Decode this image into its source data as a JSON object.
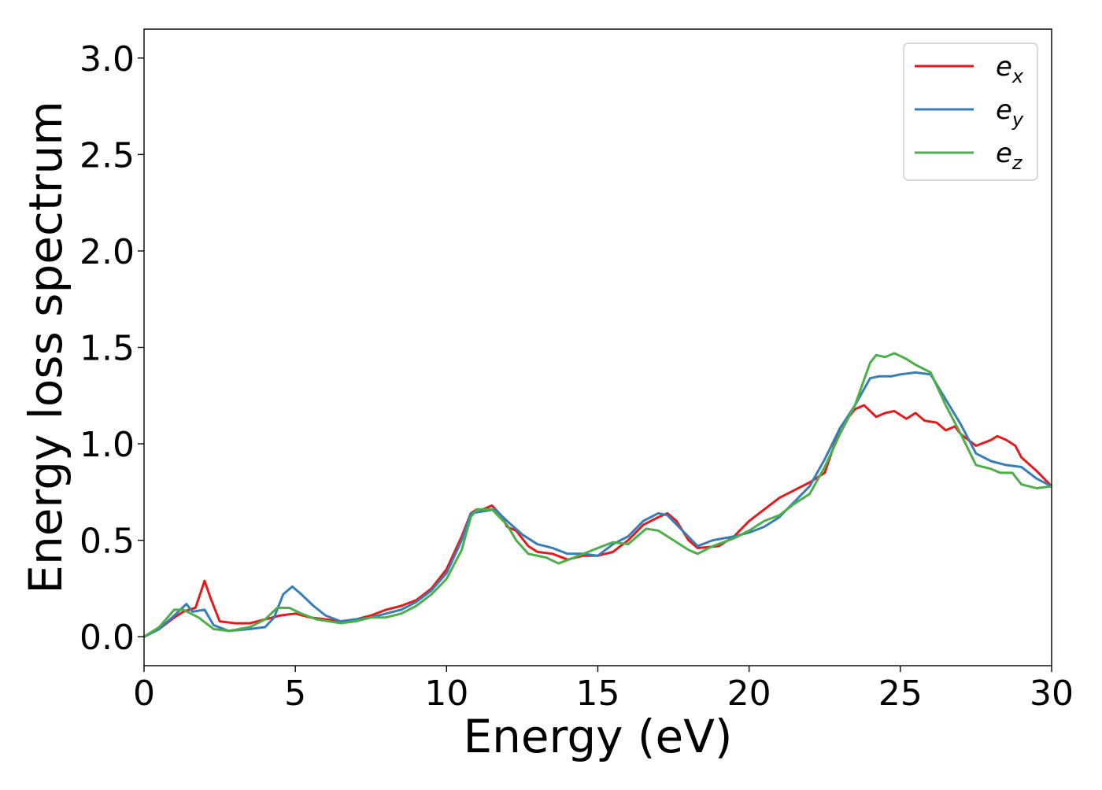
{
  "chart_data": {
    "type": "line",
    "xlabel": "Energy (eV)",
    "ylabel": "Energy loss spectrum",
    "xlim": [
      0,
      30
    ],
    "ylim": [
      -0.15,
      3.15
    ],
    "xticks": [
      0,
      5,
      10,
      15,
      20,
      25,
      30
    ],
    "xtick_labels": [
      "0",
      "5",
      "10",
      "15",
      "20",
      "25",
      "30"
    ],
    "yticks": [
      0.0,
      0.5,
      1.0,
      1.5,
      2.0,
      2.5,
      3.0
    ],
    "ytick_labels": [
      "0.0",
      "0.5",
      "1.0",
      "1.5",
      "2.0",
      "2.5",
      "3.0"
    ],
    "grid": false,
    "legend_position": "top-right",
    "series": [
      {
        "name": "e",
        "subscript": "x",
        "color": "#e41a1c",
        "points": [
          [
            0,
            0
          ],
          [
            0.5,
            0.04
          ],
          [
            1,
            0.1
          ],
          [
            1.3,
            0.13
          ],
          [
            1.7,
            0.15
          ],
          [
            2,
            0.29
          ],
          [
            2.2,
            0.2
          ],
          [
            2.5,
            0.08
          ],
          [
            3,
            0.07
          ],
          [
            3.5,
            0.07
          ],
          [
            4,
            0.09
          ],
          [
            4.5,
            0.11
          ],
          [
            5,
            0.12
          ],
          [
            5.5,
            0.1
          ],
          [
            6,
            0.09
          ],
          [
            6.5,
            0.08
          ],
          [
            7,
            0.09
          ],
          [
            7.5,
            0.11
          ],
          [
            8,
            0.14
          ],
          [
            8.5,
            0.16
          ],
          [
            9,
            0.19
          ],
          [
            9.5,
            0.25
          ],
          [
            10,
            0.35
          ],
          [
            10.5,
            0.52
          ],
          [
            10.8,
            0.64
          ],
          [
            11,
            0.66
          ],
          [
            11.2,
            0.66
          ],
          [
            11.5,
            0.68
          ],
          [
            11.8,
            0.63
          ],
          [
            12,
            0.57
          ],
          [
            12.3,
            0.55
          ],
          [
            12.7,
            0.47
          ],
          [
            13,
            0.44
          ],
          [
            13.5,
            0.43
          ],
          [
            14,
            0.4
          ],
          [
            14.5,
            0.42
          ],
          [
            15,
            0.42
          ],
          [
            15.5,
            0.44
          ],
          [
            16,
            0.5
          ],
          [
            16.5,
            0.58
          ],
          [
            17,
            0.62
          ],
          [
            17.3,
            0.64
          ],
          [
            17.6,
            0.6
          ],
          [
            18,
            0.5
          ],
          [
            18.3,
            0.46
          ],
          [
            19,
            0.47
          ],
          [
            19.5,
            0.52
          ],
          [
            20,
            0.6
          ],
          [
            20.5,
            0.66
          ],
          [
            21,
            0.72
          ],
          [
            21.5,
            0.76
          ],
          [
            22,
            0.8
          ],
          [
            22.5,
            0.85
          ],
          [
            23,
            1.08
          ],
          [
            23.5,
            1.18
          ],
          [
            23.8,
            1.2
          ],
          [
            24.2,
            1.14
          ],
          [
            24.5,
            1.16
          ],
          [
            24.8,
            1.17
          ],
          [
            25.2,
            1.13
          ],
          [
            25.5,
            1.16
          ],
          [
            25.8,
            1.12
          ],
          [
            26.2,
            1.11
          ],
          [
            26.5,
            1.07
          ],
          [
            26.8,
            1.09
          ],
          [
            27,
            1.05
          ],
          [
            27.5,
            0.99
          ],
          [
            28,
            1.02
          ],
          [
            28.2,
            1.04
          ],
          [
            28.5,
            1.02
          ],
          [
            28.8,
            0.99
          ],
          [
            29,
            0.93
          ],
          [
            29.5,
            0.86
          ],
          [
            30,
            0.78
          ]
        ]
      },
      {
        "name": "e",
        "subscript": "y",
        "color": "#377eb8",
        "points": [
          [
            0,
            0
          ],
          [
            0.5,
            0.04
          ],
          [
            1,
            0.11
          ],
          [
            1.4,
            0.17
          ],
          [
            1.6,
            0.13
          ],
          [
            2,
            0.14
          ],
          [
            2.3,
            0.06
          ],
          [
            2.8,
            0.03
          ],
          [
            3.5,
            0.04
          ],
          [
            4,
            0.05
          ],
          [
            4.3,
            0.1
          ],
          [
            4.6,
            0.22
          ],
          [
            4.9,
            0.26
          ],
          [
            5.2,
            0.22
          ],
          [
            5.6,
            0.16
          ],
          [
            6,
            0.11
          ],
          [
            6.5,
            0.08
          ],
          [
            7,
            0.09
          ],
          [
            7.5,
            0.1
          ],
          [
            8,
            0.12
          ],
          [
            8.5,
            0.14
          ],
          [
            9,
            0.18
          ],
          [
            9.5,
            0.24
          ],
          [
            10,
            0.33
          ],
          [
            10.5,
            0.5
          ],
          [
            10.8,
            0.64
          ],
          [
            11.2,
            0.65
          ],
          [
            11.6,
            0.66
          ],
          [
            12,
            0.6
          ],
          [
            12.5,
            0.53
          ],
          [
            13,
            0.48
          ],
          [
            13.5,
            0.46
          ],
          [
            14,
            0.43
          ],
          [
            14.5,
            0.43
          ],
          [
            15,
            0.42
          ],
          [
            15.5,
            0.48
          ],
          [
            16,
            0.52
          ],
          [
            16.5,
            0.6
          ],
          [
            17,
            0.64
          ],
          [
            17.3,
            0.63
          ],
          [
            17.8,
            0.55
          ],
          [
            18.3,
            0.47
          ],
          [
            18.8,
            0.5
          ],
          [
            19.5,
            0.52
          ],
          [
            20,
            0.54
          ],
          [
            20.5,
            0.57
          ],
          [
            21,
            0.62
          ],
          [
            21.5,
            0.7
          ],
          [
            22,
            0.78
          ],
          [
            22.5,
            0.92
          ],
          [
            23,
            1.08
          ],
          [
            23.5,
            1.2
          ],
          [
            24,
            1.34
          ],
          [
            24.3,
            1.35
          ],
          [
            24.7,
            1.35
          ],
          [
            25,
            1.36
          ],
          [
            25.5,
            1.37
          ],
          [
            26,
            1.36
          ],
          [
            26.5,
            1.23
          ],
          [
            27,
            1.1
          ],
          [
            27.5,
            0.95
          ],
          [
            28,
            0.91
          ],
          [
            28.5,
            0.89
          ],
          [
            29,
            0.88
          ],
          [
            29.5,
            0.82
          ],
          [
            30,
            0.78
          ]
        ]
      },
      {
        "name": "e",
        "subscript": "z",
        "color": "#4daf4a",
        "points": [
          [
            0,
            0
          ],
          [
            0.5,
            0.05
          ],
          [
            1,
            0.14
          ],
          [
            1.3,
            0.14
          ],
          [
            1.8,
            0.1
          ],
          [
            2.3,
            0.04
          ],
          [
            2.8,
            0.03
          ],
          [
            3.5,
            0.05
          ],
          [
            4,
            0.09
          ],
          [
            4.4,
            0.15
          ],
          [
            4.8,
            0.15
          ],
          [
            5.2,
            0.12
          ],
          [
            5.7,
            0.09
          ],
          [
            6.5,
            0.07
          ],
          [
            7,
            0.08
          ],
          [
            7.5,
            0.1
          ],
          [
            8,
            0.1
          ],
          [
            8.5,
            0.12
          ],
          [
            9,
            0.16
          ],
          [
            9.5,
            0.22
          ],
          [
            10,
            0.3
          ],
          [
            10.5,
            0.45
          ],
          [
            10.8,
            0.62
          ],
          [
            11,
            0.66
          ],
          [
            11.5,
            0.66
          ],
          [
            12,
            0.58
          ],
          [
            12.3,
            0.5
          ],
          [
            12.7,
            0.43
          ],
          [
            13,
            0.42
          ],
          [
            13.3,
            0.41
          ],
          [
            13.7,
            0.38
          ],
          [
            14.2,
            0.41
          ],
          [
            15,
            0.46
          ],
          [
            15.5,
            0.49
          ],
          [
            16,
            0.48
          ],
          [
            16.3,
            0.52
          ],
          [
            16.6,
            0.56
          ],
          [
            17,
            0.55
          ],
          [
            17.5,
            0.5
          ],
          [
            18,
            0.45
          ],
          [
            18.3,
            0.43
          ],
          [
            18.8,
            0.47
          ],
          [
            19.5,
            0.51
          ],
          [
            20,
            0.55
          ],
          [
            20.5,
            0.6
          ],
          [
            21,
            0.63
          ],
          [
            21.5,
            0.69
          ],
          [
            22,
            0.74
          ],
          [
            22.5,
            0.88
          ],
          [
            23,
            1.05
          ],
          [
            23.5,
            1.2
          ],
          [
            24,
            1.42
          ],
          [
            24.2,
            1.46
          ],
          [
            24.5,
            1.45
          ],
          [
            24.8,
            1.47
          ],
          [
            25.2,
            1.44
          ],
          [
            25.5,
            1.41
          ],
          [
            26,
            1.37
          ],
          [
            26.5,
            1.2
          ],
          [
            27,
            1.05
          ],
          [
            27.5,
            0.89
          ],
          [
            28,
            0.87
          ],
          [
            28.3,
            0.85
          ],
          [
            28.7,
            0.85
          ],
          [
            29,
            0.79
          ],
          [
            29.5,
            0.77
          ],
          [
            30,
            0.78
          ]
        ]
      }
    ]
  }
}
